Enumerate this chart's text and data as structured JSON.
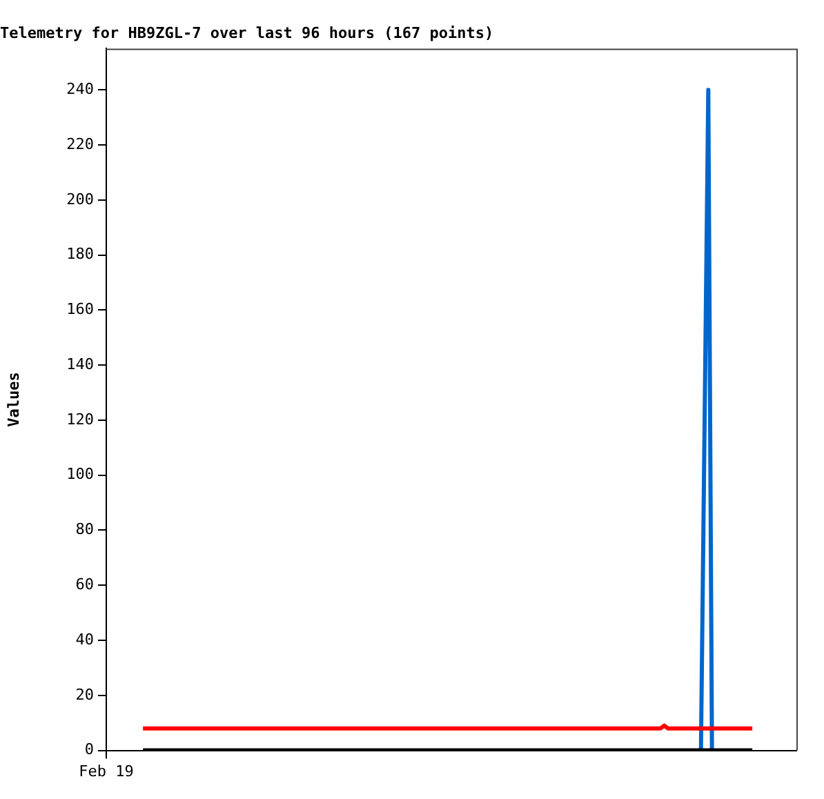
{
  "chart_data": {
    "type": "line",
    "title": "Telemetry for HB9ZGL-7 over last 96 hours (167 points)",
    "ylabel": "Values",
    "categories": [
      "Feb 19",
      null,
      null,
      null,
      null,
      null,
      null,
      null,
      null,
      null,
      null,
      null,
      null,
      null,
      null,
      null,
      null,
      null,
      null,
      null,
      null,
      null,
      null,
      null,
      null,
      null,
      null,
      null,
      null,
      null,
      null,
      null,
      null,
      null,
      null,
      null,
      null,
      null,
      null,
      null,
      null,
      null,
      null,
      null,
      null,
      null,
      null,
      null,
      null,
      null,
      null,
      null,
      null,
      null,
      null,
      null,
      null,
      null,
      null,
      null,
      null,
      null,
      null,
      null,
      null,
      null,
      null,
      null,
      null,
      null,
      null,
      null,
      null,
      null,
      null,
      null,
      null,
      null,
      null,
      null,
      null,
      null,
      null,
      null,
      null,
      null,
      null,
      null,
      null,
      null,
      null,
      null,
      null,
      null,
      null,
      null,
      null,
      null,
      null,
      null,
      null,
      null,
      null,
      null,
      null,
      null,
      null,
      null,
      null,
      null,
      null,
      null,
      null,
      null,
      null,
      null,
      null,
      null,
      null,
      null,
      null,
      null,
      null,
      null,
      null,
      null,
      null,
      null,
      null,
      null,
      null,
      null,
      null,
      null,
      null,
      null,
      null,
      null,
      null,
      null,
      null,
      null,
      null,
      null,
      null,
      null,
      null,
      null,
      null,
      null,
      null,
      null,
      null,
      null,
      null,
      null,
      null,
      null,
      null,
      null,
      null,
      null,
      null,
      null,
      null,
      null,
      null,
      null,
      null,
      null,
      null,
      null,
      null,
      null,
      null,
      null,
      null,
      null,
      null,
      null,
      null,
      null,
      null,
      null,
      null,
      null,
      null,
      null,
      null
    ],
    "ylim": [
      0,
      255
    ],
    "yticks": [
      0,
      20,
      40,
      60,
      80,
      100,
      120,
      140,
      160,
      180,
      200,
      220,
      240
    ],
    "grid": false,
    "legend": false,
    "marker": "none",
    "line_style": "solid",
    "series": [
      {
        "color": "#ff0000",
        "values": [
          null,
          null,
          null,
          null,
          null,
          null,
          null,
          null,
          null,
          null,
          8,
          8,
          8,
          8,
          8,
          8,
          8,
          8,
          8,
          8,
          8,
          8,
          8,
          8,
          8,
          8,
          8,
          8,
          8,
          8,
          8,
          8,
          8,
          8,
          8,
          8,
          8,
          8,
          8,
          8,
          8,
          8,
          8,
          8,
          8,
          8,
          8,
          8,
          8,
          8,
          8,
          8,
          8,
          8,
          8,
          8,
          8,
          8,
          8,
          8,
          8,
          8,
          8,
          8,
          8,
          8,
          8,
          8,
          8,
          8,
          8,
          8,
          8,
          8,
          8,
          8,
          8,
          8,
          8,
          8,
          8,
          8,
          8,
          8,
          8,
          8,
          8,
          8,
          8,
          8,
          8,
          8,
          8,
          8,
          8,
          8,
          8,
          8,
          8,
          8,
          8,
          8,
          8,
          8,
          8,
          8,
          8,
          8,
          8,
          8,
          8,
          8,
          8,
          8,
          8,
          8,
          8,
          8,
          8,
          8,
          8,
          8,
          8,
          8,
          8,
          8,
          8,
          8,
          8,
          8,
          8,
          8,
          8,
          8,
          8,
          8,
          8,
          8,
          8,
          8,
          8,
          8,
          8,
          8,
          8,
          8,
          8,
          8,
          8,
          8,
          8,
          8,
          9,
          8,
          8,
          8,
          8,
          8,
          8,
          8,
          8,
          8,
          8,
          8,
          8,
          8,
          8,
          8,
          8,
          8,
          8,
          8,
          8,
          8,
          8,
          8,
          8,
          null,
          null,
          null,
          null,
          null,
          null,
          null,
          null,
          null,
          null,
          null,
          null
        ]
      },
      {
        "color": "#000000",
        "values": [
          null,
          null,
          null,
          null,
          null,
          null,
          null,
          null,
          null,
          null,
          0,
          0,
          0,
          0,
          0,
          0,
          0,
          0,
          0,
          0,
          0,
          0,
          0,
          0,
          0,
          0,
          0,
          0,
          0,
          0,
          0,
          0,
          0,
          0,
          0,
          0,
          0,
          0,
          0,
          0,
          0,
          0,
          0,
          0,
          0,
          0,
          0,
          0,
          0,
          0,
          0,
          0,
          0,
          0,
          0,
          0,
          0,
          0,
          0,
          0,
          0,
          0,
          0,
          0,
          0,
          0,
          0,
          0,
          0,
          0,
          0,
          0,
          0,
          0,
          0,
          0,
          0,
          0,
          0,
          0,
          0,
          0,
          0,
          0,
          0,
          0,
          0,
          0,
          0,
          0,
          0,
          0,
          0,
          0,
          0,
          0,
          0,
          0,
          0,
          0,
          0,
          0,
          0,
          0,
          0,
          0,
          0,
          0,
          0,
          0,
          0,
          0,
          0,
          0,
          0,
          0,
          0,
          0,
          0,
          0,
          0,
          0,
          0,
          0,
          0,
          0,
          0,
          0,
          0,
          0,
          0,
          0,
          0,
          0,
          0,
          0,
          0,
          0,
          0,
          0,
          0,
          0,
          0,
          0,
          0,
          0,
          0,
          0,
          0,
          0,
          0,
          0,
          0,
          0,
          0,
          0,
          0,
          0,
          0,
          0,
          0,
          0,
          0,
          0,
          0,
          0,
          0,
          0,
          0,
          0,
          0,
          0,
          0,
          0,
          0,
          0,
          0,
          null,
          null,
          null,
          null,
          null,
          null,
          null,
          null,
          null,
          null,
          null,
          null
        ]
      },
      {
        "color": "#0066cc",
        "values": [
          null,
          null,
          null,
          null,
          null,
          null,
          null,
          null,
          null,
          null,
          null,
          null,
          null,
          null,
          null,
          null,
          null,
          null,
          null,
          null,
          null,
          null,
          null,
          null,
          null,
          null,
          null,
          null,
          null,
          null,
          null,
          null,
          null,
          null,
          null,
          null,
          null,
          null,
          null,
          null,
          null,
          null,
          null,
          null,
          null,
          null,
          null,
          null,
          null,
          null,
          null,
          null,
          null,
          null,
          null,
          null,
          null,
          null,
          null,
          null,
          null,
          null,
          null,
          null,
          null,
          null,
          null,
          null,
          null,
          null,
          null,
          null,
          null,
          null,
          null,
          null,
          null,
          null,
          null,
          null,
          null,
          null,
          null,
          null,
          null,
          null,
          null,
          null,
          null,
          null,
          null,
          null,
          null,
          null,
          null,
          null,
          null,
          null,
          null,
          null,
          null,
          null,
          null,
          null,
          null,
          null,
          null,
          null,
          null,
          null,
          null,
          null,
          null,
          null,
          null,
          null,
          null,
          null,
          null,
          null,
          null,
          null,
          null,
          null,
          null,
          null,
          null,
          null,
          null,
          null,
          null,
          null,
          null,
          null,
          null,
          null,
          null,
          null,
          null,
          null,
          null,
          null,
          null,
          null,
          null,
          null,
          null,
          null,
          null,
          null,
          null,
          null,
          null,
          null,
          null,
          null,
          null,
          null,
          null,
          null,
          null,
          null,
          0,
          120,
          240,
          0,
          null,
          null,
          null,
          null,
          null,
          null,
          null,
          null,
          null,
          null,
          null,
          null,
          null,
          null,
          null,
          null,
          null,
          null,
          null,
          null,
          null,
          null,
          null
        ]
      }
    ]
  }
}
